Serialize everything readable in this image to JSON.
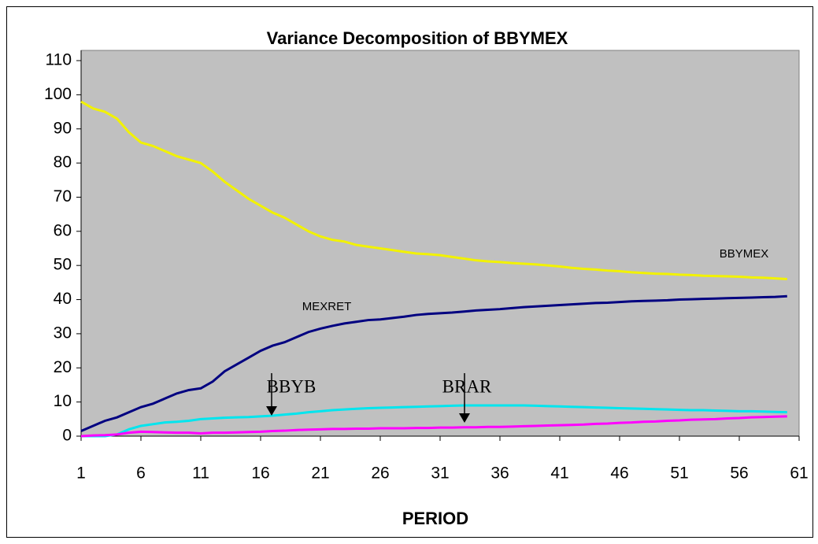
{
  "chart_data": {
    "type": "line",
    "title": "Variance Decomposition of BBYMEX",
    "xlabel": "PERIOD",
    "x": [
      1,
      2,
      3,
      4,
      5,
      6,
      7,
      8,
      9,
      10,
      11,
      12,
      13,
      14,
      15,
      16,
      17,
      18,
      19,
      20,
      21,
      22,
      23,
      24,
      25,
      26,
      27,
      28,
      29,
      30,
      31,
      32,
      33,
      34,
      35,
      36,
      37,
      38,
      39,
      40,
      41,
      42,
      43,
      44,
      45,
      46,
      47,
      48,
      49,
      50,
      51,
      52,
      53,
      54,
      55,
      56,
      57,
      58,
      59,
      60
    ],
    "series": [
      {
        "name": "BBYMEX",
        "color": "#f2f200",
        "values": [
          98,
          96,
          95,
          93,
          89,
          86,
          85,
          83.5,
          82,
          81,
          80,
          77.5,
          74.5,
          72,
          69.5,
          67.5,
          65.5,
          64,
          62,
          60,
          58.5,
          57.5,
          57,
          56,
          55.5,
          55,
          54.5,
          54,
          53.5,
          53.3,
          53,
          52.5,
          52,
          51.5,
          51.2,
          51,
          50.7,
          50.5,
          50.3,
          50,
          49.7,
          49.3,
          49,
          48.8,
          48.5,
          48.3,
          48,
          47.8,
          47.6,
          47.5,
          47.3,
          47.2,
          47,
          46.9,
          46.8,
          46.7,
          46.5,
          46.4,
          46.2,
          46
        ]
      },
      {
        "name": "MEXRET",
        "color": "#000080",
        "values": [
          1.5,
          3,
          4.5,
          5.5,
          7,
          8.5,
          9.5,
          11,
          12.5,
          13.5,
          14,
          16,
          19,
          21,
          23,
          25,
          26.5,
          27.5,
          29,
          30.5,
          31.5,
          32.3,
          33,
          33.5,
          34,
          34.2,
          34.6,
          35,
          35.5,
          35.8,
          36,
          36.2,
          36.5,
          36.8,
          37,
          37.2,
          37.5,
          37.8,
          38,
          38.2,
          38.4,
          38.6,
          38.8,
          39,
          39.1,
          39.3,
          39.5,
          39.6,
          39.7,
          39.8,
          40,
          40.1,
          40.2,
          40.3,
          40.4,
          40.5,
          40.6,
          40.7,
          40.8,
          41
        ]
      },
      {
        "name": "BBYB",
        "color": "#00e5ee",
        "values": [
          0,
          0,
          0,
          0.5,
          2,
          3,
          3.5,
          4,
          4.2,
          4.5,
          5,
          5.2,
          5.4,
          5.5,
          5.6,
          5.8,
          6,
          6.3,
          6.6,
          7,
          7.3,
          7.6,
          7.8,
          8,
          8.2,
          8.3,
          8.4,
          8.5,
          8.6,
          8.7,
          8.8,
          8.9,
          9,
          9,
          9,
          9,
          9,
          9,
          8.9,
          8.8,
          8.7,
          8.6,
          8.5,
          8.4,
          8.3,
          8.2,
          8.1,
          8,
          7.9,
          7.8,
          7.7,
          7.6,
          7.6,
          7.5,
          7.4,
          7.3,
          7.3,
          7.2,
          7.1,
          7
        ]
      },
      {
        "name": "BRAR",
        "color": "#ff00ff",
        "values": [
          0,
          0.2,
          0.3,
          0.5,
          1,
          1.3,
          1.2,
          1.1,
          1,
          1,
          0.8,
          1,
          1,
          1.1,
          1.2,
          1.3,
          1.5,
          1.6,
          1.8,
          1.9,
          2,
          2.1,
          2.1,
          2.2,
          2.2,
          2.3,
          2.3,
          2.3,
          2.4,
          2.4,
          2.5,
          2.5,
          2.6,
          2.6,
          2.7,
          2.7,
          2.8,
          2.9,
          3,
          3.1,
          3.2,
          3.3,
          3.4,
          3.6,
          3.7,
          3.9,
          4,
          4.2,
          4.3,
          4.5,
          4.6,
          4.8,
          4.9,
          5,
          5.2,
          5.3,
          5.5,
          5.6,
          5.7,
          5.8
        ]
      }
    ],
    "xlim": [
      1,
      61
    ],
    "xticks": [
      1,
      6,
      11,
      16,
      21,
      26,
      31,
      36,
      41,
      46,
      51,
      56,
      61
    ],
    "ylim": [
      0,
      110
    ],
    "yticks": [
      0,
      10,
      20,
      30,
      40,
      50,
      60,
      70,
      80,
      90,
      100,
      110
    ],
    "background": "#c0c0c0"
  }
}
